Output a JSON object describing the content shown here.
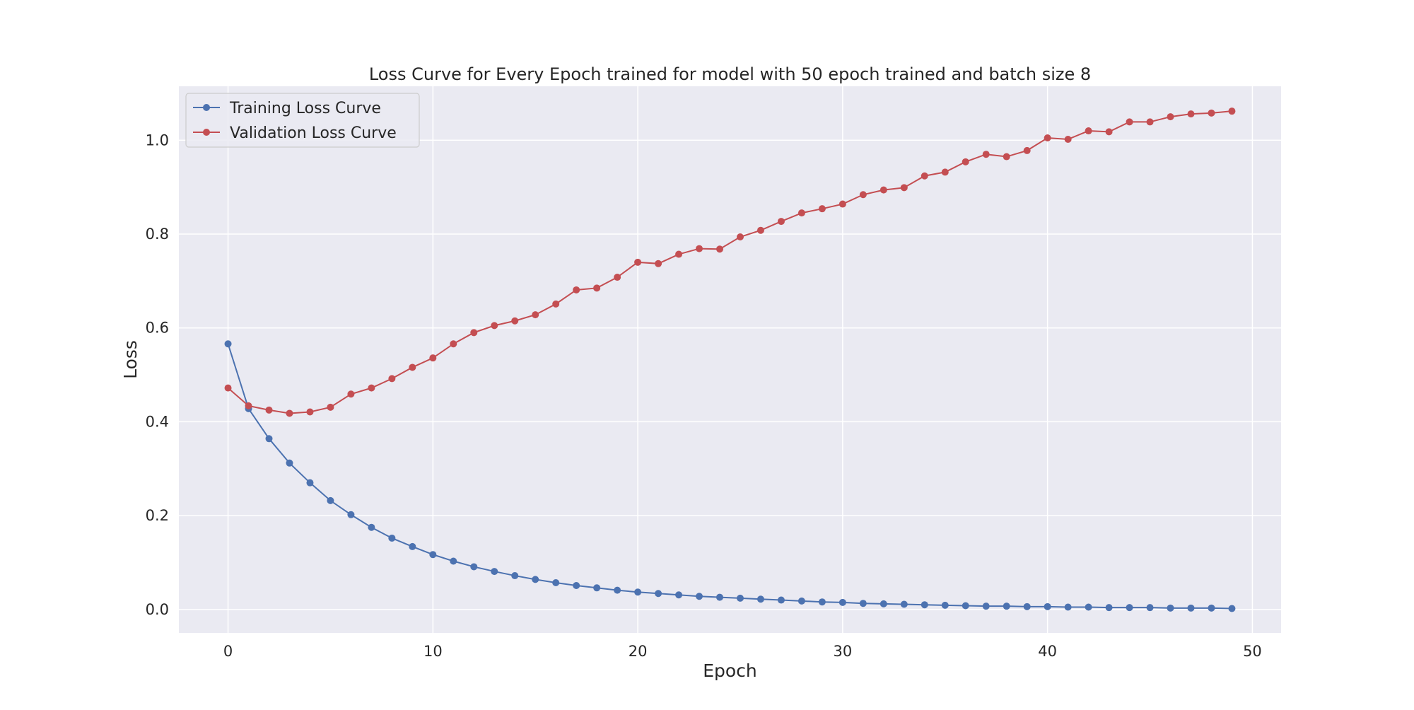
{
  "chart_data": {
    "type": "line",
    "title": "Loss Curve for Every Epoch trained for model with 50 epoch trained and batch size 8",
    "xlabel": "Epoch",
    "ylabel": "Loss",
    "xlim": [
      -2.4,
      51.4
    ],
    "ylim": [
      -0.05,
      1.115
    ],
    "xticks": [
      0,
      10,
      20,
      30,
      40,
      50
    ],
    "yticks": [
      0.0,
      0.2,
      0.4,
      0.6,
      0.8,
      1.0
    ],
    "grid": true,
    "legend_position": "upper-left",
    "x": [
      0,
      1,
      2,
      3,
      4,
      5,
      6,
      7,
      8,
      9,
      10,
      11,
      12,
      13,
      14,
      15,
      16,
      17,
      18,
      19,
      20,
      21,
      22,
      23,
      24,
      25,
      26,
      27,
      28,
      29,
      30,
      31,
      32,
      33,
      34,
      35,
      36,
      37,
      38,
      39,
      40,
      41,
      42,
      43,
      44,
      45,
      46,
      47,
      48,
      49
    ],
    "series": [
      {
        "name": "Training Loss Curve",
        "color": "#4c72b0",
        "values": [
          0.566,
          0.428,
          0.364,
          0.312,
          0.27,
          0.232,
          0.202,
          0.175,
          0.152,
          0.134,
          0.117,
          0.103,
          0.091,
          0.081,
          0.072,
          0.064,
          0.057,
          0.051,
          0.046,
          0.041,
          0.037,
          0.034,
          0.031,
          0.028,
          0.026,
          0.024,
          0.022,
          0.02,
          0.018,
          0.016,
          0.015,
          0.013,
          0.012,
          0.011,
          0.01,
          0.009,
          0.008,
          0.007,
          0.007,
          0.006,
          0.006,
          0.005,
          0.005,
          0.004,
          0.004,
          0.004,
          0.003,
          0.003,
          0.003,
          0.002
        ]
      },
      {
        "name": "Validation Loss Curve",
        "color": "#c44e52",
        "values": [
          0.472,
          0.434,
          0.425,
          0.418,
          0.421,
          0.431,
          0.459,
          0.472,
          0.492,
          0.516,
          0.536,
          0.566,
          0.59,
          0.605,
          0.615,
          0.628,
          0.651,
          0.681,
          0.685,
          0.708,
          0.74,
          0.737,
          0.757,
          0.769,
          0.768,
          0.794,
          0.808,
          0.827,
          0.845,
          0.854,
          0.864,
          0.884,
          0.894,
          0.899,
          0.924,
          0.932,
          0.954,
          0.97,
          0.965,
          0.978,
          1.005,
          1.002,
          1.02,
          1.018,
          1.039,
          1.039,
          1.05,
          1.056,
          1.058,
          1.062
        ]
      }
    ]
  },
  "style": {
    "axes_background": "#eaeaf2",
    "grid_color": "#ffffff",
    "text_color": "#262626"
  }
}
